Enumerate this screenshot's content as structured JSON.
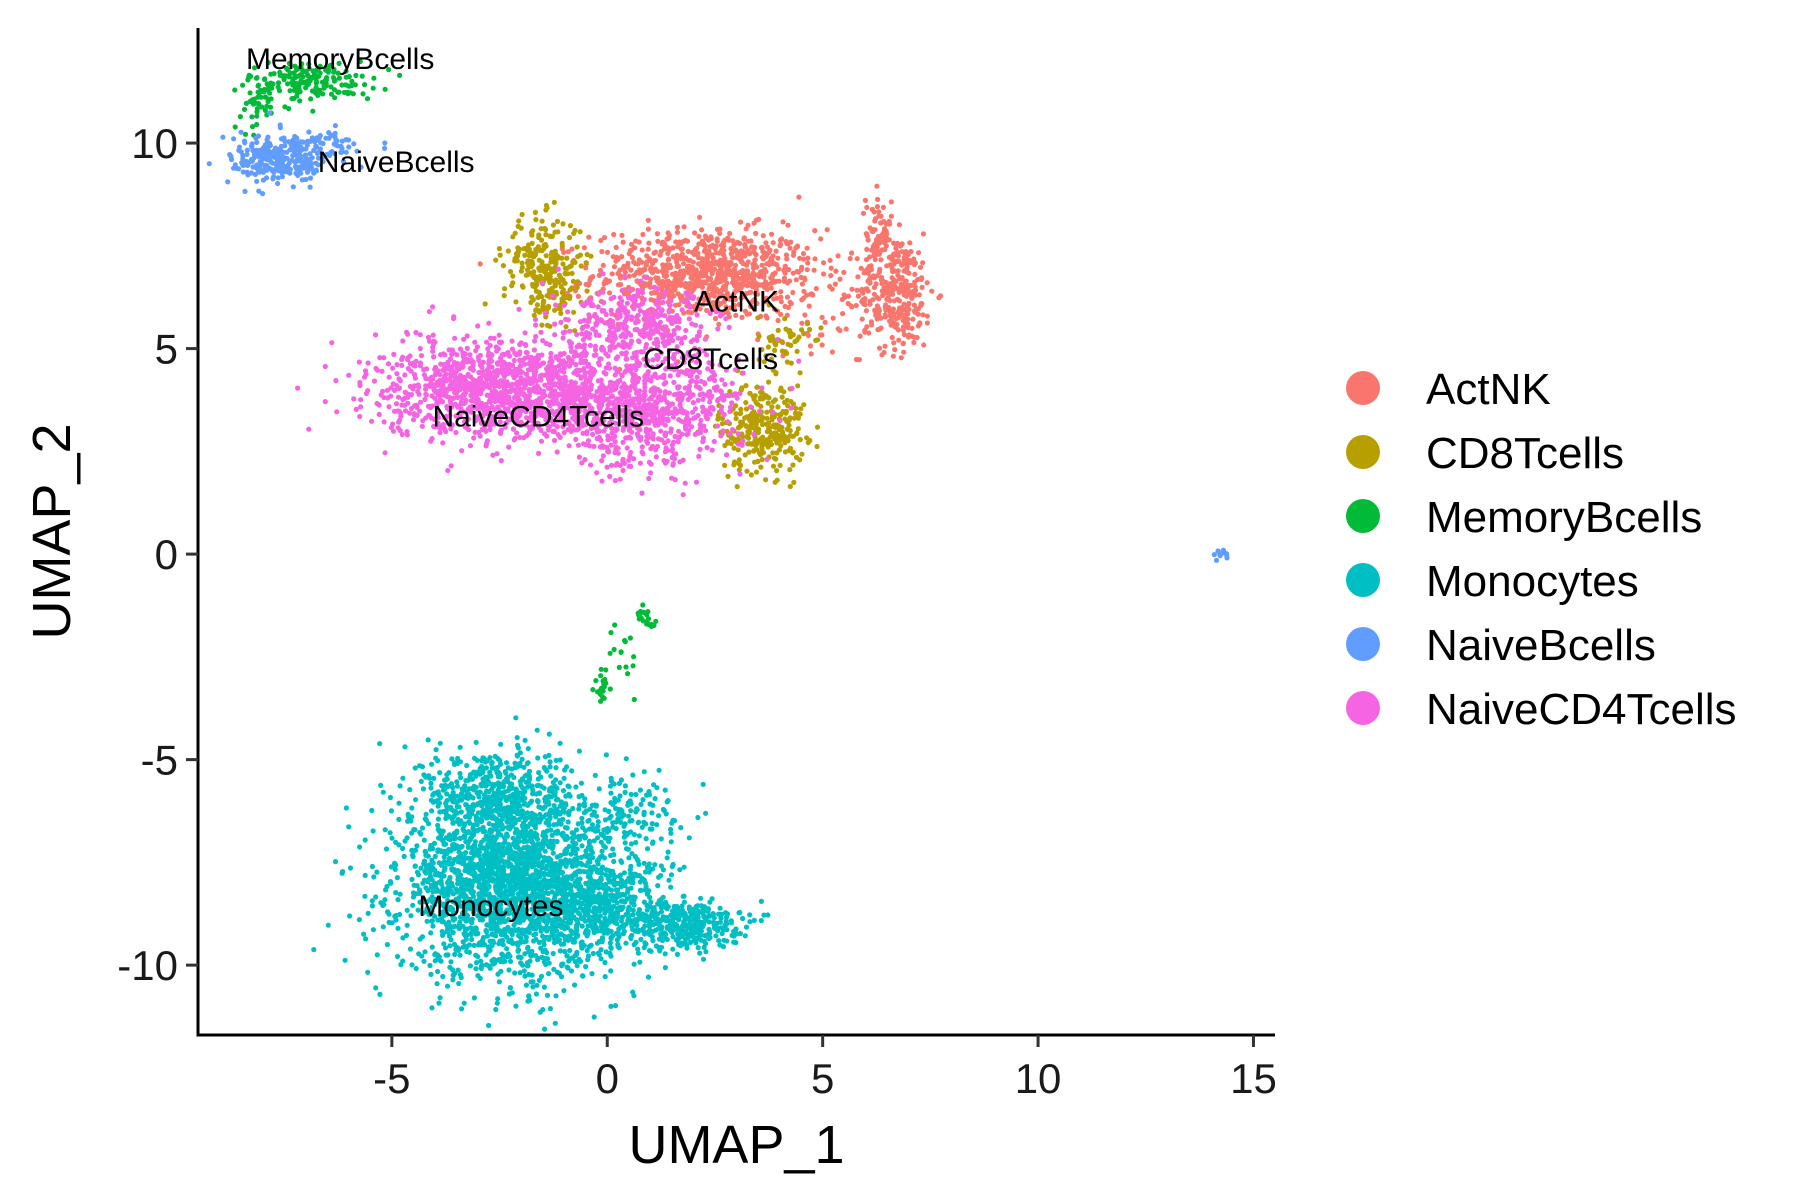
{
  "chart_data": {
    "type": "scatter",
    "title": "",
    "xlabel": "UMAP_1",
    "ylabel": "UMAP_2",
    "xlim": [
      -9.5,
      15.5
    ],
    "ylim": [
      -11.7,
      12.8
    ],
    "x_ticks": [
      -5,
      0,
      5,
      10,
      15
    ],
    "y_ticks": [
      -10,
      -5,
      0,
      5,
      10
    ],
    "x_tick_labels": [
      "-5",
      "0",
      "5",
      "10",
      "15"
    ],
    "y_tick_labels": [
      "-10",
      "-5",
      "0",
      "5",
      "10"
    ],
    "grid": false,
    "legend_position": "right",
    "series": [
      {
        "name": "ActNK",
        "color": "#F8766D",
        "label_position": [
          3.0,
          5.9
        ],
        "clusters": [
          {
            "cx": 2.3,
            "cy": 6.8,
            "sx": 1.3,
            "sy": 0.55,
            "n": 900
          },
          {
            "cx": 6.7,
            "cy": 6.4,
            "sx": 0.45,
            "sy": 0.7,
            "n": 320
          },
          {
            "cx": 6.3,
            "cy": 7.8,
            "sx": 0.15,
            "sy": 0.5,
            "n": 60
          },
          {
            "cx": 5.3,
            "cy": 5.8,
            "sx": 0.7,
            "sy": 0.4,
            "n": 30
          }
        ]
      },
      {
        "name": "CD8Tcells",
        "color": "#B79F00",
        "label_position": [
          2.4,
          4.5
        ],
        "clusters": [
          {
            "cx": -1.5,
            "cy": 7.1,
            "sx": 0.45,
            "sy": 0.55,
            "n": 220
          },
          {
            "cx": -1.2,
            "cy": 6.1,
            "sx": 0.3,
            "sy": 0.4,
            "n": 60
          },
          {
            "cx": 3.6,
            "cy": 3.1,
            "sx": 0.5,
            "sy": 0.55,
            "n": 300
          },
          {
            "cx": 4.1,
            "cy": 5.1,
            "sx": 0.3,
            "sy": 0.35,
            "n": 50
          }
        ]
      },
      {
        "name": "MemoryBcells",
        "color": "#00BA38",
        "label_position": [
          -6.2,
          11.8
        ],
        "clusters": [
          {
            "cx": -6.9,
            "cy": 11.5,
            "sx": 0.75,
            "sy": 0.25,
            "n": 170
          },
          {
            "cx": -8.1,
            "cy": 11.0,
            "sx": 0.2,
            "sy": 0.35,
            "n": 40
          },
          {
            "cx": 0.9,
            "cy": -1.5,
            "sx": 0.12,
            "sy": 0.12,
            "n": 20
          },
          {
            "cx": 0.4,
            "cy": -2.5,
            "sx": 0.2,
            "sy": 0.4,
            "n": 15
          },
          {
            "cx": -0.1,
            "cy": -3.2,
            "sx": 0.1,
            "sy": 0.25,
            "n": 20
          }
        ]
      },
      {
        "name": "Monocytes",
        "color": "#00BFC4",
        "label_position": [
          -2.7,
          -8.8
        ],
        "clusters": [
          {
            "cx": -2.3,
            "cy": -8.0,
            "sx": 1.25,
            "sy": 1.1,
            "n": 2300
          },
          {
            "cx": -2.7,
            "cy": -5.8,
            "sx": 0.8,
            "sy": 0.55,
            "n": 400
          },
          {
            "cx": 1.8,
            "cy": -9.0,
            "sx": 0.65,
            "sy": 0.3,
            "n": 350
          },
          {
            "cx": 0.3,
            "cy": -6.3,
            "sx": 0.75,
            "sy": 0.45,
            "n": 150
          },
          {
            "cx": -0.2,
            "cy": -8.6,
            "sx": 0.8,
            "sy": 0.6,
            "n": 500
          }
        ]
      },
      {
        "name": "NaiveBcells",
        "color": "#619CFF",
        "label_position": [
          -4.9,
          9.3
        ],
        "clusters": [
          {
            "cx": -7.6,
            "cy": 9.6,
            "sx": 0.55,
            "sy": 0.3,
            "n": 260
          },
          {
            "cx": -6.6,
            "cy": 9.9,
            "sx": 0.45,
            "sy": 0.2,
            "n": 60
          },
          {
            "cx": 14.3,
            "cy": 0.0,
            "sx": 0.08,
            "sy": 0.08,
            "n": 12
          }
        ]
      },
      {
        "name": "NaiveCD4Tcells",
        "color": "#F564E3",
        "label_position": [
          -1.6,
          3.1
        ],
        "clusters": [
          {
            "cx": -2.3,
            "cy": 4.0,
            "sx": 1.5,
            "sy": 0.6,
            "n": 1300
          },
          {
            "cx": 0.9,
            "cy": 3.5,
            "sx": 1.1,
            "sy": 0.7,
            "n": 700
          },
          {
            "cx": 0.8,
            "cy": 5.5,
            "sx": 0.9,
            "sy": 0.45,
            "n": 350
          }
        ]
      }
    ]
  }
}
